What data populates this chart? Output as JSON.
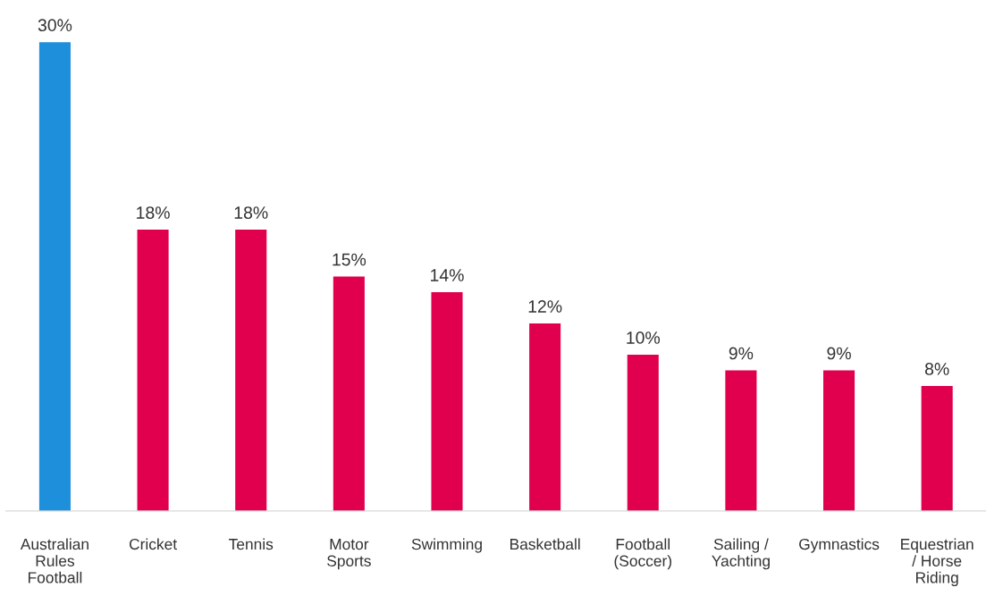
{
  "chart_data": {
    "type": "bar",
    "categories": [
      "Australian\nRules\nFootball",
      "Cricket",
      "Tennis",
      "Motor\nSports",
      "Swimming",
      "Basketball",
      "Football\n(Soccer)",
      "Sailing /\nYachting",
      "Gymnastics",
      "Equestrian\n/ Horse\nRiding"
    ],
    "values": [
      30,
      18,
      18,
      15,
      14,
      12,
      10,
      9,
      9,
      8
    ],
    "value_labels": [
      "30%",
      "18%",
      "18%",
      "15%",
      "14%",
      "12%",
      "10%",
      "9%",
      "9%",
      "8%"
    ],
    "colors": [
      "#1e8fdb",
      "#e0004d",
      "#e0004d",
      "#e0004d",
      "#e0004d",
      "#e0004d",
      "#e0004d",
      "#e0004d",
      "#e0004d",
      "#e0004d"
    ],
    "grid": false,
    "legend": false
  }
}
